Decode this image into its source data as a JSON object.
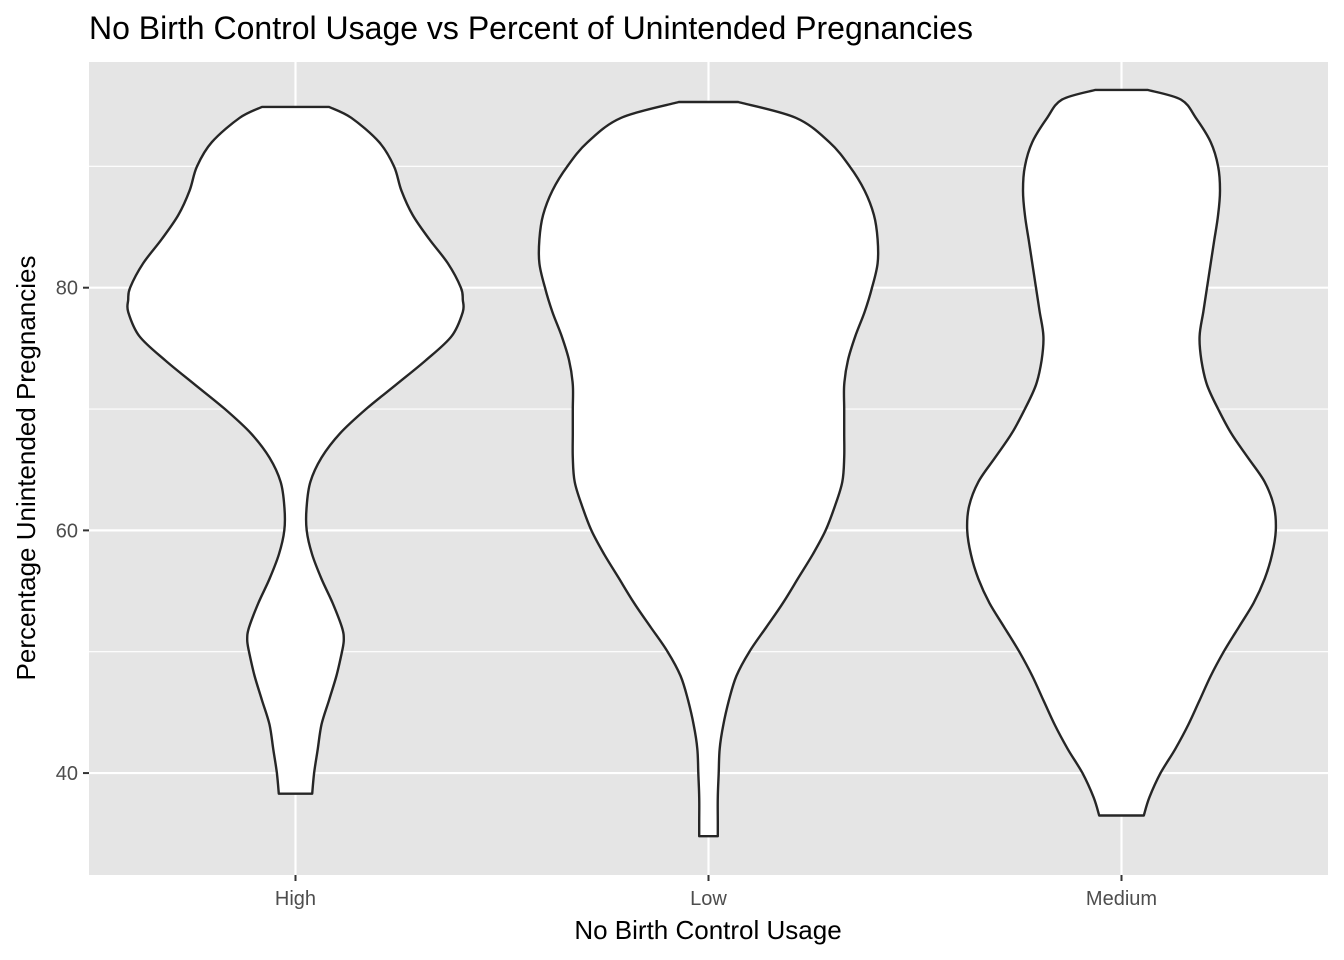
{
  "chart_data": {
    "type": "violin",
    "title": "No Birth Control Usage vs Percent of Unintended Pregnancies",
    "xlabel": "No Birth Control Usage",
    "ylabel": "Percentage Unintended Pregnancies",
    "categories": [
      "High",
      "Low",
      "Medium"
    ],
    "ylim": [
      31.6,
      98.6
    ],
    "yticks": [
      40,
      60,
      80
    ],
    "grid": true,
    "legend": "none",
    "violins": [
      {
        "category": "High",
        "min": 38.3,
        "max": 94.9,
        "profile": [
          [
            38.3,
            0.09
          ],
          [
            40,
            0.1
          ],
          [
            42,
            0.12
          ],
          [
            44,
            0.14
          ],
          [
            46,
            0.18
          ],
          [
            48,
            0.22
          ],
          [
            50,
            0.25
          ],
          [
            51,
            0.26
          ],
          [
            52,
            0.25
          ],
          [
            54,
            0.2
          ],
          [
            56,
            0.14
          ],
          [
            58,
            0.09
          ],
          [
            60,
            0.06
          ],
          [
            62,
            0.06
          ],
          [
            64,
            0.08
          ],
          [
            66,
            0.14
          ],
          [
            68,
            0.24
          ],
          [
            70,
            0.38
          ],
          [
            72,
            0.54
          ],
          [
            74,
            0.7
          ],
          [
            76,
            0.84
          ],
          [
            78,
            0.9
          ],
          [
            79,
            0.9
          ],
          [
            80,
            0.89
          ],
          [
            82,
            0.82
          ],
          [
            84,
            0.72
          ],
          [
            86,
            0.63
          ],
          [
            88,
            0.57
          ],
          [
            90,
            0.53
          ],
          [
            92,
            0.45
          ],
          [
            94,
            0.3
          ],
          [
            94.9,
            0.18
          ]
        ]
      },
      {
        "category": "Low",
        "min": 34.8,
        "max": 95.3,
        "profile": [
          [
            34.8,
            0.05
          ],
          [
            36,
            0.05
          ],
          [
            38,
            0.05
          ],
          [
            40,
            0.055
          ],
          [
            42,
            0.06
          ],
          [
            44,
            0.08
          ],
          [
            46,
            0.11
          ],
          [
            48,
            0.15
          ],
          [
            50,
            0.22
          ],
          [
            52,
            0.31
          ],
          [
            54,
            0.4
          ],
          [
            56,
            0.48
          ],
          [
            58,
            0.56
          ],
          [
            60,
            0.63
          ],
          [
            62,
            0.68
          ],
          [
            64,
            0.72
          ],
          [
            66,
            0.73
          ],
          [
            68,
            0.73
          ],
          [
            70,
            0.73
          ],
          [
            72,
            0.73
          ],
          [
            74,
            0.75
          ],
          [
            76,
            0.79
          ],
          [
            78,
            0.84
          ],
          [
            80,
            0.88
          ],
          [
            82,
            0.91
          ],
          [
            84,
            0.91
          ],
          [
            86,
            0.89
          ],
          [
            88,
            0.84
          ],
          [
            90,
            0.76
          ],
          [
            92,
            0.65
          ],
          [
            94,
            0.47
          ],
          [
            95.3,
            0.16
          ]
        ]
      },
      {
        "category": "Medium",
        "min": 36.5,
        "max": 96.3,
        "profile": [
          [
            36.5,
            0.12
          ],
          [
            38,
            0.15
          ],
          [
            40,
            0.21
          ],
          [
            42,
            0.29
          ],
          [
            44,
            0.36
          ],
          [
            46,
            0.42
          ],
          [
            48,
            0.48
          ],
          [
            50,
            0.55
          ],
          [
            52,
            0.63
          ],
          [
            54,
            0.71
          ],
          [
            56,
            0.77
          ],
          [
            58,
            0.81
          ],
          [
            60,
            0.83
          ],
          [
            62,
            0.82
          ],
          [
            64,
            0.77
          ],
          [
            66,
            0.68
          ],
          [
            68,
            0.59
          ],
          [
            70,
            0.52
          ],
          [
            72,
            0.46
          ],
          [
            74,
            0.43
          ],
          [
            76,
            0.42
          ],
          [
            78,
            0.44
          ],
          [
            80,
            0.46
          ],
          [
            82,
            0.48
          ],
          [
            84,
            0.5
          ],
          [
            86,
            0.52
          ],
          [
            88,
            0.53
          ],
          [
            90,
            0.52
          ],
          [
            92,
            0.48
          ],
          [
            94,
            0.4
          ],
          [
            95.5,
            0.32
          ],
          [
            96.3,
            0.14
          ]
        ]
      }
    ]
  }
}
